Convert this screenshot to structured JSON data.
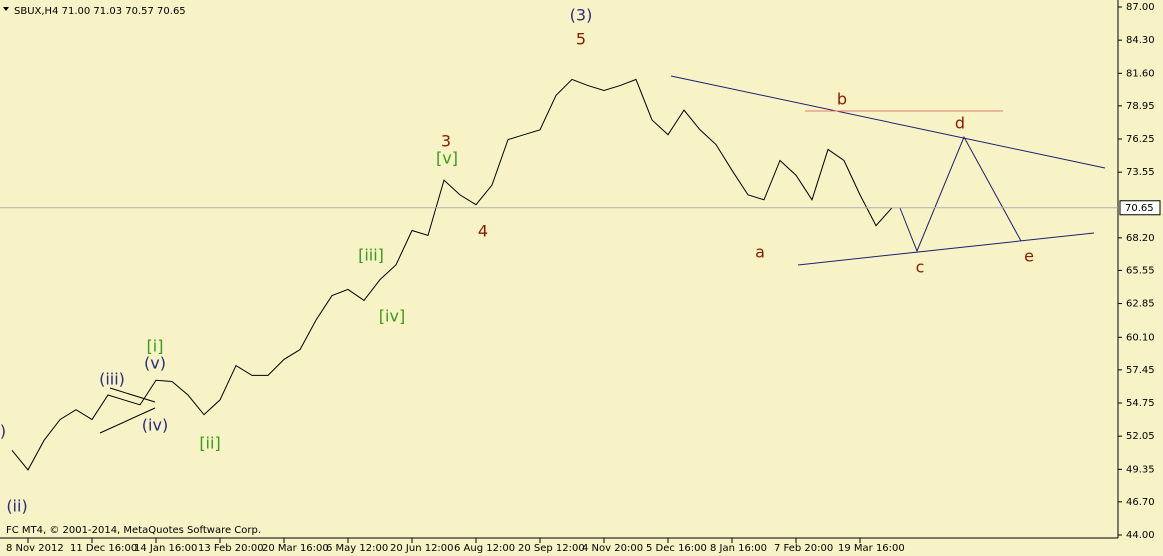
{
  "chart_data": {
    "type": "line",
    "title": "SBUX,H4  71.00 71.03 70.57 70.65",
    "footer": "FC MT4, © 2001-2014, MetaQuotes Software Corp.",
    "categories": [
      null,
      "8 Nov 2012",
      null,
      null,
      null,
      "11 Dec 16:00",
      null,
      null,
      null,
      "14 Jan 16:00",
      null,
      null,
      null,
      "13 Feb 20:00",
      null,
      null,
      null,
      "20 Mar 16:00",
      null,
      null,
      null,
      "6 May 12:00",
      null,
      null,
      null,
      "20 Jun 12:00",
      null,
      null,
      null,
      "6 Aug 12:00",
      null,
      null,
      null,
      "20 Sep 12:00",
      null,
      null,
      null,
      "4 Nov 20:00",
      null,
      null,
      null,
      "5 Dec 16:00",
      null,
      null,
      null,
      "8 Jan 16:00",
      null,
      null,
      null,
      "7 Feb 20:00",
      null,
      null,
      null,
      "19 Mar 16:00",
      null,
      null
    ],
    "values": [
      50.9,
      49.3,
      51.7,
      53.4,
      54.2,
      53.4,
      55.4,
      55.0,
      54.6,
      56.6,
      56.5,
      55.4,
      53.8,
      55.0,
      57.8,
      57.0,
      57.0,
      58.3,
      59.1,
      61.5,
      63.5,
      64.0,
      63.1,
      64.8,
      66.0,
      68.8,
      68.4,
      72.9,
      71.7,
      70.9,
      72.5,
      76.2,
      76.6,
      77.0,
      79.8,
      81.1,
      80.6,
      80.2,
      80.6,
      81.1,
      77.8,
      76.6,
      78.6,
      77.0,
      75.8,
      73.7,
      71.7,
      71.3,
      74.5,
      73.3,
      71.3,
      75.4,
      74.5,
      71.7,
      69.2,
      70.65
    ],
    "color": "#000000",
    "ylim": [
      44.0,
      87.0
    ],
    "yticks": [
      {
        "value": 44.0,
        "label": "44.00"
      },
      {
        "value": 46.7,
        "label": "46.70"
      },
      {
        "value": 49.35,
        "label": "49.35"
      },
      {
        "value": 52.05,
        "label": "52.05"
      },
      {
        "value": 54.75,
        "label": "54.75"
      },
      {
        "value": 57.45,
        "label": "57.45"
      },
      {
        "value": 60.1,
        "label": "60.10"
      },
      {
        "value": 62.85,
        "label": "62.85"
      },
      {
        "value": 65.55,
        "label": "65.55"
      },
      {
        "value": 68.2,
        "label": "68.20"
      },
      {
        "value": 73.55,
        "label": "73.55"
      },
      {
        "value": 76.25,
        "label": "76.25"
      },
      {
        "value": 78.95,
        "label": "78.95"
      },
      {
        "value": 81.6,
        "label": "81.60"
      },
      {
        "value": 84.3,
        "label": "84.30"
      },
      {
        "value": 87.0,
        "label": "87.00"
      }
    ],
    "last_price": {
      "value": 70.65,
      "label": "70.65"
    },
    "annotations": [
      {
        "text": "(3)",
        "color": "#2a2a80"
      },
      {
        "text": "5",
        "color": "#8b1a00"
      },
      {
        "text": "3",
        "color": "#8b1a00"
      },
      {
        "text": "[v]",
        "color": "#3a9a1a"
      },
      {
        "text": "4",
        "color": "#8b1a00"
      },
      {
        "text": "[iii]",
        "color": "#3a9a1a"
      },
      {
        "text": "[iv]",
        "color": "#3a9a1a"
      },
      {
        "text": "[i]",
        "color": "#3a9a1a"
      },
      {
        "text": "(v)",
        "color": "#2a2a80"
      },
      {
        "text": "(iii)",
        "color": "#2a2a80"
      },
      {
        "text": "(iv)",
        "color": "#2a2a80"
      },
      {
        "text": "[ii]",
        "color": "#3a9a1a"
      },
      {
        "text": "(ii)",
        "color": "#2a2a80"
      },
      {
        "text": ")",
        "color": "#2a2a80"
      },
      {
        "text": "b",
        "color": "#8b1a00"
      },
      {
        "text": "d",
        "color": "#8b1a00"
      },
      {
        "text": "a",
        "color": "#8b1a00"
      },
      {
        "text": "c",
        "color": "#8b1a00"
      },
      {
        "text": "e",
        "color": "#8b1a00"
      }
    ]
  }
}
